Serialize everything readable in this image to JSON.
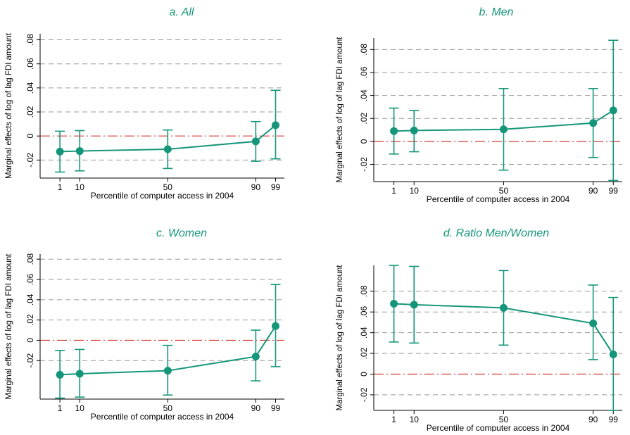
{
  "chart_data": [
    {
      "type": "line",
      "title": "a. All",
      "xlabel": "Percentile of computer access in 2004",
      "ylabel": "Marginal effects of log of lag FDI amount",
      "x": [
        1,
        10,
        50,
        90,
        99
      ],
      "x_tick_labels": [
        "1",
        "10",
        "50",
        "90",
        "99"
      ],
      "ylim": [
        -0.035,
        0.085
      ],
      "y_ticks": [
        -0.02,
        0,
        0.02,
        0.04,
        0.06,
        0.08
      ],
      "y_tick_labels": [
        "-.02",
        "0",
        ".02",
        ".04",
        ".06",
        ".08"
      ],
      "estimate": [
        -0.013,
        -0.0125,
        -0.011,
        -0.0045,
        0.009
      ],
      "ci_upper": [
        0.004,
        0.0045,
        0.005,
        0.012,
        0.038
      ],
      "ci_lower": [
        -0.03,
        -0.029,
        -0.027,
        -0.021,
        -0.019
      ],
      "grid": true,
      "reference_line": 0
    },
    {
      "type": "line",
      "title": "b. Men",
      "xlabel": "Percentile of computer access in 2004",
      "ylabel": "Marginal effects of log of lag FDI amount",
      "x": [
        1,
        10,
        50,
        90,
        99
      ],
      "x_tick_labels": [
        "1",
        "10",
        "50",
        "90",
        "99"
      ],
      "ylim": [
        -0.035,
        0.09
      ],
      "y_ticks": [
        -0.02,
        0,
        0.02,
        0.04,
        0.06,
        0.08
      ],
      "y_tick_labels": [
        "-.02",
        "0",
        ".02",
        ".04",
        ".06",
        ".08"
      ],
      "estimate": [
        0.009,
        0.0095,
        0.0105,
        0.016,
        0.027
      ],
      "ci_upper": [
        0.029,
        0.027,
        0.046,
        0.046,
        0.088
      ],
      "ci_lower": [
        -0.011,
        -0.009,
        -0.025,
        -0.014,
        -0.034
      ],
      "grid": true,
      "reference_line": 0
    },
    {
      "type": "line",
      "title": "c. Women",
      "xlabel": "Percentile of computer access in 2004",
      "ylabel": "Marginal effects of log of lag FDI amount",
      "x": [
        1,
        10,
        50,
        90,
        99
      ],
      "x_tick_labels": [
        "1",
        "10",
        "50",
        "90",
        "99"
      ],
      "ylim": [
        -0.058,
        0.085
      ],
      "y_ticks": [
        -0.02,
        0,
        0.02,
        0.04,
        0.06,
        0.08
      ],
      "y_tick_labels": [
        "-.02",
        "0",
        ".02",
        ".04",
        ".06",
        ".08"
      ],
      "estimate": [
        -0.034,
        -0.033,
        -0.03,
        -0.016,
        0.014
      ],
      "ci_upper": [
        -0.01,
        -0.009,
        -0.005,
        0.01,
        0.055
      ],
      "ci_lower": [
        -0.057,
        -0.056,
        -0.054,
        -0.04,
        -0.026
      ],
      "grid": true,
      "reference_line": 0
    },
    {
      "type": "line",
      "title": "d. Ratio Men/Women",
      "xlabel": "Percentile of computer access in 2004",
      "ylabel": "Marginal effects of log of lag FDI amount",
      "x": [
        1,
        10,
        50,
        90,
        99
      ],
      "x_tick_labels": [
        "1",
        "10",
        "50",
        "90",
        "99"
      ],
      "ylim": [
        -0.035,
        0.105
      ],
      "y_ticks": [
        -0.02,
        0,
        0.02,
        0.04,
        0.06,
        0.08
      ],
      "y_tick_labels": [
        "-.02",
        "0",
        ".02",
        ".04",
        ".06",
        ".08"
      ],
      "estimate": [
        0.068,
        0.067,
        0.064,
        0.049,
        0.019
      ],
      "ci_upper": [
        0.105,
        0.104,
        0.1,
        0.086,
        0.074
      ],
      "ci_lower": [
        0.031,
        0.03,
        0.028,
        0.014,
        -0.035
      ],
      "grid": true,
      "reference_line": 0
    }
  ],
  "colors": {
    "series": "#15967a",
    "reference_line": "#d23a33",
    "grid": "#9a9a9a",
    "axis": "#000000",
    "title": "#15967a"
  }
}
